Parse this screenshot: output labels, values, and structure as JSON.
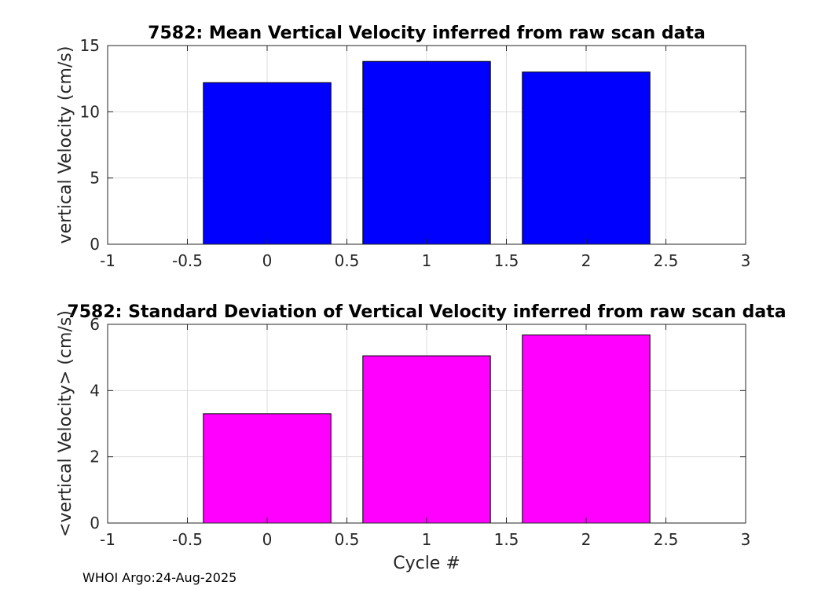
{
  "chart_data": [
    {
      "type": "bar",
      "title": "7582: Mean Vertical Velocity inferred from raw scan data",
      "xlabel": "",
      "ylabel": "vertical Velocity (cm/s)",
      "categories": [
        0,
        1,
        2
      ],
      "values": [
        12.2,
        13.8,
        13.0
      ],
      "bar_width": 0.8,
      "bar_color": "#0000ff",
      "xlim": [
        -1,
        3
      ],
      "ylim": [
        0,
        15
      ],
      "xticks": [
        -1,
        -0.5,
        0,
        0.5,
        1,
        1.5,
        2,
        2.5,
        3
      ],
      "yticks": [
        0,
        5,
        10,
        15
      ],
      "grid": true
    },
    {
      "type": "bar",
      "title": "7582: Standard Deviation of Vertical Velocity inferred from raw scan data",
      "xlabel": "Cycle #",
      "ylabel": "<vertical Velocity> (cm/s)",
      "categories": [
        0,
        1,
        2
      ],
      "values": [
        3.3,
        5.05,
        5.68
      ],
      "bar_width": 0.8,
      "bar_color": "#ff00ff",
      "xlim": [
        -1,
        3
      ],
      "ylim": [
        0,
        6
      ],
      "xticks": [
        -1,
        -0.5,
        0,
        0.5,
        1,
        1.5,
        2,
        2.5,
        3
      ],
      "yticks": [
        0,
        2,
        4,
        6
      ],
      "grid": true
    }
  ],
  "footer": {
    "text": "WHOI Argo:24-Aug-2025"
  }
}
